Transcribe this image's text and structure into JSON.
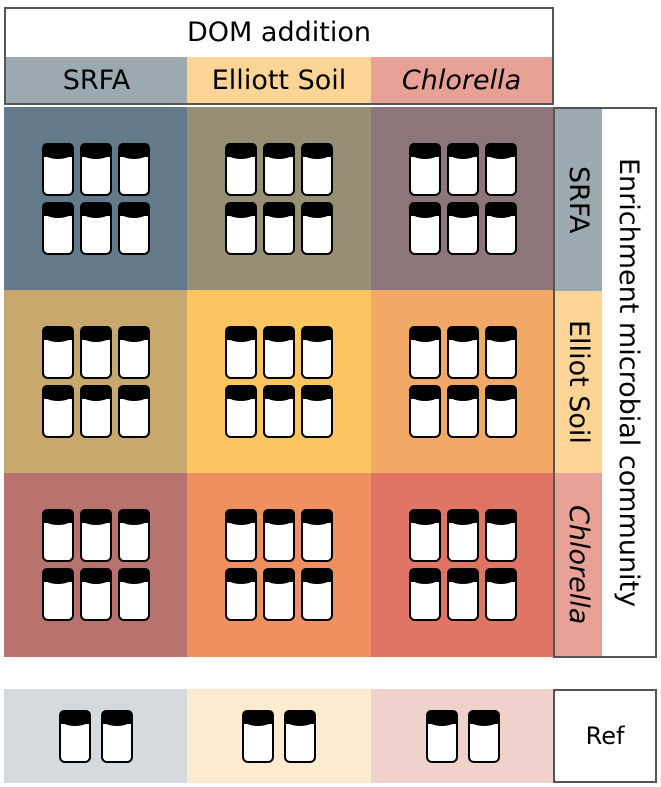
{
  "dom_addition": {
    "title": "DOM addition",
    "columns": [
      {
        "label": "SRFA",
        "italic": false,
        "color": "#9da9b0"
      },
      {
        "label": "Elliott Soil",
        "italic": false,
        "color": "#fcd596"
      },
      {
        "label": "Chlorella",
        "italic": true,
        "color": "#e8a197"
      }
    ]
  },
  "enrichment_community": {
    "title": "Enrichment microbial community",
    "rows": [
      {
        "label": "SRFA",
        "italic": false,
        "color": "#9da9b0"
      },
      {
        "label": "Elliot Soil",
        "italic": false,
        "color": "#fcd596"
      },
      {
        "label": "Chlorella",
        "italic": true,
        "color": "#e8a197"
      }
    ]
  },
  "grid_colors": [
    [
      "#627a8a",
      "#968f73",
      "#8d767a"
    ],
    [
      "#c9a86d",
      "#fcc55f",
      "#f2a866"
    ],
    [
      "#b8736e",
      "#ee9060",
      "#e07566"
    ]
  ],
  "jars_per_cell": 6,
  "reference": {
    "label": "Ref",
    "colors": [
      "#d5dade",
      "#fdebd0",
      "#f1d1cc"
    ],
    "jars_per_cell": 2
  }
}
